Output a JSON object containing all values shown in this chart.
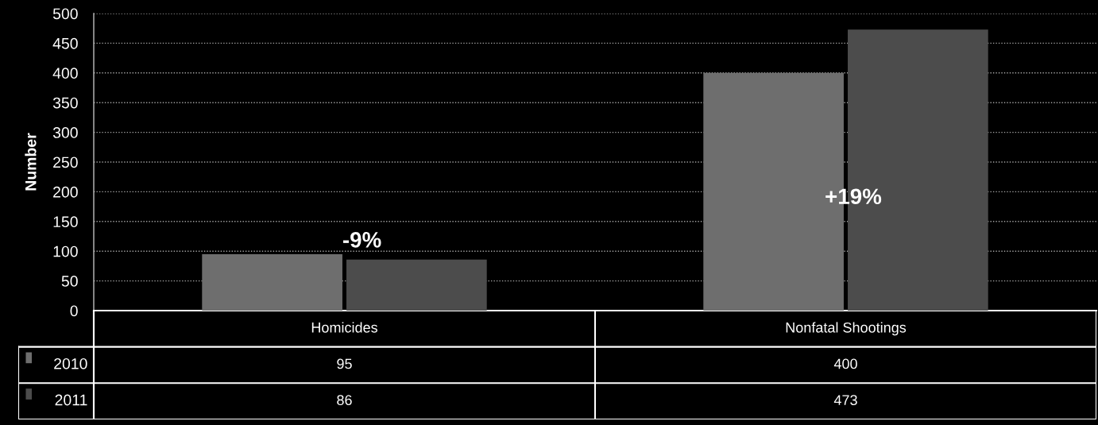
{
  "chart_data": {
    "type": "bar",
    "ylabel": "Number",
    "categories": [
      "Homicides",
      "Nonfatal Shootings"
    ],
    "series": [
      {
        "name": "2010",
        "color": "#6e6e6e",
        "values": [
          95,
          400
        ]
      },
      {
        "name": "2011",
        "color": "#4c4c4c",
        "values": [
          86,
          473
        ]
      }
    ],
    "ylim": [
      0,
      500
    ],
    "yticks": [
      0,
      50,
      100,
      150,
      200,
      250,
      300,
      350,
      400,
      450,
      500
    ],
    "grid": "y",
    "legend": "bottom",
    "data_labels": true,
    "annotations": [
      "-9%",
      "+19%"
    ]
  }
}
